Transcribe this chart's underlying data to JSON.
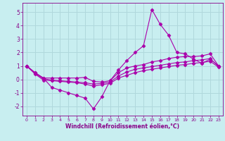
{
  "background_color": "#c8eef0",
  "grid_color": "#b0d8dc",
  "line_color": "#aa00aa",
  "marker": "D",
  "xlabel": "Windchill (Refroidissement éolien,°C)",
  "xlabel_color": "#880088",
  "tick_color": "#880088",
  "ylim": [
    -2.7,
    5.7
  ],
  "xlim": [
    -0.5,
    23.5
  ],
  "yticks": [
    -2,
    -1,
    0,
    1,
    2,
    3,
    4,
    5
  ],
  "xticks": [
    0,
    1,
    2,
    3,
    4,
    5,
    6,
    7,
    8,
    9,
    10,
    11,
    12,
    13,
    14,
    15,
    16,
    17,
    18,
    19,
    20,
    21,
    22,
    23
  ],
  "series": [
    [
      1.0,
      0.5,
      0.1,
      -0.6,
      -0.8,
      -1.0,
      -1.2,
      -1.4,
      -2.2,
      -1.3,
      -0.1,
      0.7,
      1.4,
      2.0,
      2.5,
      5.2,
      4.1,
      3.3,
      2.0,
      1.9,
      1.5,
      1.2,
      1.5,
      1.0
    ],
    [
      1.0,
      0.5,
      0.1,
      0.1,
      0.1,
      0.1,
      0.1,
      0.15,
      -0.15,
      -0.2,
      -0.1,
      0.5,
      0.85,
      1.0,
      1.1,
      1.3,
      1.4,
      1.55,
      1.65,
      1.7,
      1.7,
      1.75,
      1.9,
      1.0
    ],
    [
      1.0,
      0.45,
      0.05,
      -0.05,
      -0.1,
      -0.15,
      -0.2,
      -0.25,
      -0.35,
      -0.3,
      -0.2,
      0.25,
      0.55,
      0.75,
      0.85,
      0.95,
      1.05,
      1.15,
      1.25,
      1.3,
      1.4,
      1.45,
      1.55,
      0.95
    ],
    [
      1.0,
      0.4,
      -0.05,
      -0.1,
      -0.15,
      -0.2,
      -0.25,
      -0.35,
      -0.5,
      -0.4,
      -0.3,
      0.1,
      0.3,
      0.5,
      0.65,
      0.75,
      0.85,
      0.95,
      1.05,
      1.1,
      1.2,
      1.25,
      1.35,
      0.9
    ]
  ]
}
